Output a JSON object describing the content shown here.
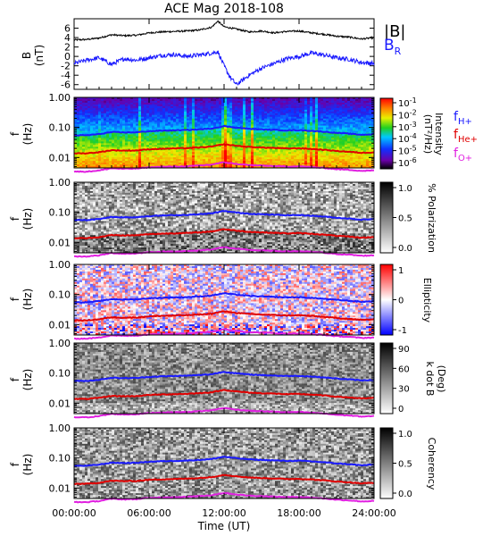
{
  "chart_data": {
    "title": "ACE Mag 2018-108",
    "xlabel": "Time (UT)",
    "x_ticks": [
      "00:00:00",
      "06:00:00",
      "12:00:00",
      "18:00:00",
      "24:00:00"
    ],
    "x_range_hours": [
      0,
      24
    ],
    "panels": [
      {
        "type": "line",
        "ylabel_main": "B",
        "ylabel_unit": "(nT)",
        "ylim": [
          -7,
          8
        ],
        "y_ticks": [
          "6",
          "4",
          "2",
          "0",
          "-2",
          "-4",
          "-6"
        ],
        "y_tick_values": [
          6,
          4,
          2,
          0,
          -2,
          -4,
          -6
        ],
        "legend": [
          {
            "label": "|B|",
            "color": "#000000"
          },
          {
            "label": "B",
            "sub": "R",
            "color": "#1a1aff"
          }
        ],
        "series": [
          {
            "key": "B_total",
            "color": "#000000",
            "x": [
              0,
              1,
              2,
              3,
              4,
              5,
              6,
              7,
              8,
              9,
              10,
              11,
              11.5,
              12,
              13,
              14,
              15,
              16,
              17,
              18,
              19,
              20,
              21,
              22,
              23,
              24
            ],
            "y": [
              3.5,
              3.6,
              3.9,
              4.6,
              4.4,
              4.5,
              5.0,
              5.2,
              5.3,
              5.4,
              5.6,
              6.2,
              7.5,
              6.3,
              5.8,
              5.2,
              5.4,
              5.0,
              5.3,
              5.4,
              5.0,
              4.7,
              4.3,
              4.1,
              3.7,
              4.0
            ]
          },
          {
            "key": "B_R",
            "color": "#1a1aff",
            "x": [
              0,
              1,
              2,
              3,
              4,
              5,
              6,
              7,
              8,
              9,
              10,
              11,
              11.5,
              12,
              12.5,
              13,
              14,
              15,
              16,
              17,
              18,
              19,
              20,
              21,
              22,
              23,
              24
            ],
            "y": [
              -1.5,
              -0.8,
              -0.3,
              -1.7,
              -0.5,
              -0.8,
              -0.3,
              0.2,
              0.4,
              0.0,
              0.3,
              0.7,
              1.0,
              -2.0,
              -4.5,
              -6.0,
              -4.0,
              -2.5,
              -1.5,
              -0.5,
              0.0,
              0.7,
              0.3,
              -0.3,
              -0.6,
              -1.3,
              -1.5
            ]
          }
        ]
      },
      {
        "type": "heatmap",
        "ylabel_main": "f",
        "ylabel_unit": "(Hz)",
        "colorbar": "rainbow",
        "colorbar_ticks": [
          "10",
          "10",
          "10",
          "10",
          "10",
          "10"
        ],
        "colorbar_exponents": [
          "-1",
          "-2",
          "-3",
          "-4",
          "-5",
          "-6"
        ],
        "colorbar_label_1": "Intensity",
        "colorbar_label_2": "(nT²/Hz)",
        "legend": [
          {
            "label": "f",
            "sub": "H+",
            "color": "#1a1aff"
          },
          {
            "label": "f",
            "sub": "He+",
            "color": "#e00000"
          },
          {
            "label": "f",
            "sub": "O+",
            "color": "#e020e0"
          }
        ]
      },
      {
        "type": "heatmap",
        "ylabel_main": "f",
        "ylabel_unit": "(Hz)",
        "colorbar": "gray",
        "colorbar_ticks": [
          "1.0",
          "0.5",
          "0.0"
        ],
        "colorbar_label_1": "% Polarization"
      },
      {
        "type": "heatmap",
        "ylabel_main": "f",
        "ylabel_unit": "(Hz)",
        "colorbar": "bwr",
        "colorbar_ticks": [
          "1",
          "0",
          "-1"
        ],
        "colorbar_label_1": "Ellipticity"
      },
      {
        "type": "heatmap",
        "ylabel_main": "f",
        "ylabel_unit": "(Hz)",
        "colorbar": "gray",
        "colorbar_ticks": [
          "90",
          "60",
          "30",
          "0"
        ],
        "colorbar_label_1": "k dot B",
        "colorbar_label_2": "(Deg)"
      },
      {
        "type": "heatmap",
        "ylabel_main": "f",
        "ylabel_unit": "(Hz)",
        "colorbar": "gray",
        "colorbar_ticks": [
          "1.0",
          "0.5",
          "0.0"
        ],
        "colorbar_label_1": "Coherency"
      }
    ],
    "freq_ticks": [
      "1.00",
      "0.10",
      "0.01"
    ],
    "freq_tick_values": [
      1.0,
      0.1,
      0.01
    ],
    "freq_range_hz": [
      0.0045,
      1.0
    ],
    "gyro_lines": [
      {
        "key": "f_H",
        "color": "#1a1aff",
        "x": [
          0,
          1,
          2,
          3,
          4,
          5,
          6,
          7,
          8,
          9,
          10,
          11,
          12,
          13,
          14,
          15,
          16,
          17,
          18,
          19,
          20,
          21,
          22,
          23,
          24
        ],
        "y": [
          0.055,
          0.055,
          0.06,
          0.07,
          0.068,
          0.069,
          0.075,
          0.078,
          0.08,
          0.082,
          0.086,
          0.092,
          0.11,
          0.098,
          0.09,
          0.086,
          0.083,
          0.08,
          0.081,
          0.077,
          0.072,
          0.066,
          0.062,
          0.057,
          0.06
        ]
      },
      {
        "key": "f_He",
        "color": "#e00000",
        "x": [
          0,
          1,
          2,
          3,
          4,
          5,
          6,
          7,
          8,
          9,
          10,
          11,
          12,
          13,
          14,
          15,
          16,
          17,
          18,
          19,
          20,
          21,
          22,
          23,
          24
        ],
        "y": [
          0.0138,
          0.0138,
          0.015,
          0.0175,
          0.017,
          0.0172,
          0.0188,
          0.0195,
          0.02,
          0.0205,
          0.0215,
          0.023,
          0.0275,
          0.0245,
          0.0225,
          0.0215,
          0.0208,
          0.02,
          0.0203,
          0.0193,
          0.018,
          0.0165,
          0.0155,
          0.0143,
          0.015
        ]
      },
      {
        "key": "f_O",
        "color": "#e020e0",
        "x": [
          0,
          1,
          2,
          3,
          4,
          5,
          6,
          7,
          8,
          9,
          10,
          11,
          12,
          13,
          14,
          15,
          16,
          17,
          18,
          19,
          20,
          21,
          22,
          23,
          24
        ],
        "y": [
          0.0034,
          0.0034,
          0.0037,
          0.0044,
          0.0042,
          0.0043,
          0.0047,
          0.0049,
          0.005,
          0.0051,
          0.0054,
          0.0058,
          0.0069,
          0.0061,
          0.0056,
          0.0054,
          0.0052,
          0.005,
          0.0051,
          0.0048,
          0.0045,
          0.0041,
          0.0039,
          0.0036,
          0.0037
        ]
      }
    ]
  }
}
